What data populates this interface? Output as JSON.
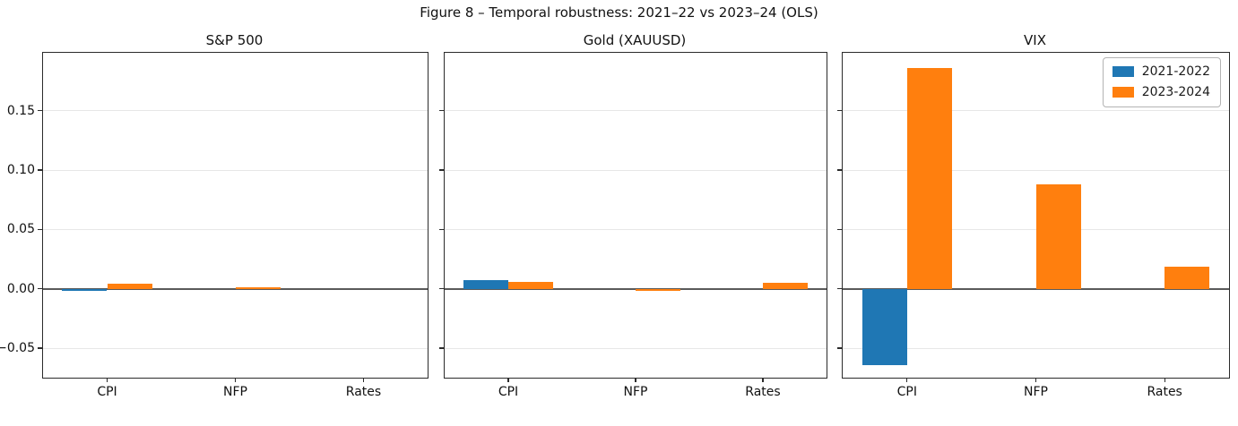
{
  "figure": {
    "title": "Figure 8 – Temporal robustness: 2021–22 vs 2023–24 (OLS)"
  },
  "colors": {
    "series_2021_2022": "#1f77b4",
    "series_2023_2024": "#ff7f0e",
    "grid": "#e7e7e7",
    "zero_line": "#5a5a5a",
    "spine": "#2b2b2b"
  },
  "legend": {
    "position": "top-right-of-vix-panel",
    "entries": [
      {
        "label": "2021-2022",
        "color": "#1f77b4"
      },
      {
        "label": "2023-2024",
        "color": "#ff7f0e"
      }
    ]
  },
  "chart_data": [
    {
      "type": "bar",
      "title": "S&P 500",
      "categories": [
        "CPI",
        "NFP",
        "Rates"
      ],
      "series": [
        {
          "name": "2021-2022",
          "values": [
            -0.002,
            0.0,
            0.0
          ]
        },
        {
          "name": "2023-2024",
          "values": [
            0.004,
            0.001,
            0.0
          ]
        }
      ],
      "ylim": [
        -0.0748,
        0.1988
      ],
      "yticks": [
        -0.05,
        0.0,
        0.05,
        0.1,
        0.15
      ],
      "ytick_labels": [
        "−0.05",
        "0.00",
        "0.05",
        "0.10",
        "0.15"
      ],
      "grid": true,
      "show_ytick_labels": true,
      "zero_line": true
    },
    {
      "type": "bar",
      "title": "Gold (XAUUSD)",
      "categories": [
        "CPI",
        "NFP",
        "Rates"
      ],
      "series": [
        {
          "name": "2021-2022",
          "values": [
            0.007,
            0.0,
            0.0
          ]
        },
        {
          "name": "2023-2024",
          "values": [
            0.006,
            -0.002,
            0.005
          ]
        }
      ],
      "ylim": [
        -0.0748,
        0.1988
      ],
      "yticks": [
        -0.05,
        0.0,
        0.05,
        0.1,
        0.15
      ],
      "ytick_labels": [
        "−0.05",
        "0.00",
        "0.05",
        "0.10",
        "0.15"
      ],
      "grid": true,
      "show_ytick_labels": false,
      "zero_line": true
    },
    {
      "type": "bar",
      "title": "VIX",
      "categories": [
        "CPI",
        "NFP",
        "Rates"
      ],
      "series": [
        {
          "name": "2021-2022",
          "values": [
            -0.064,
            0.0,
            0.0
          ]
        },
        {
          "name": "2023-2024",
          "values": [
            0.186,
            0.088,
            0.019
          ]
        }
      ],
      "ylim": [
        -0.0748,
        0.1988
      ],
      "yticks": [
        -0.05,
        0.0,
        0.05,
        0.1,
        0.15
      ],
      "ytick_labels": [
        "−0.05",
        "0.00",
        "0.05",
        "0.10",
        "0.15"
      ],
      "grid": true,
      "show_ytick_labels": false,
      "zero_line": true,
      "legend_position": "upper right"
    }
  ]
}
